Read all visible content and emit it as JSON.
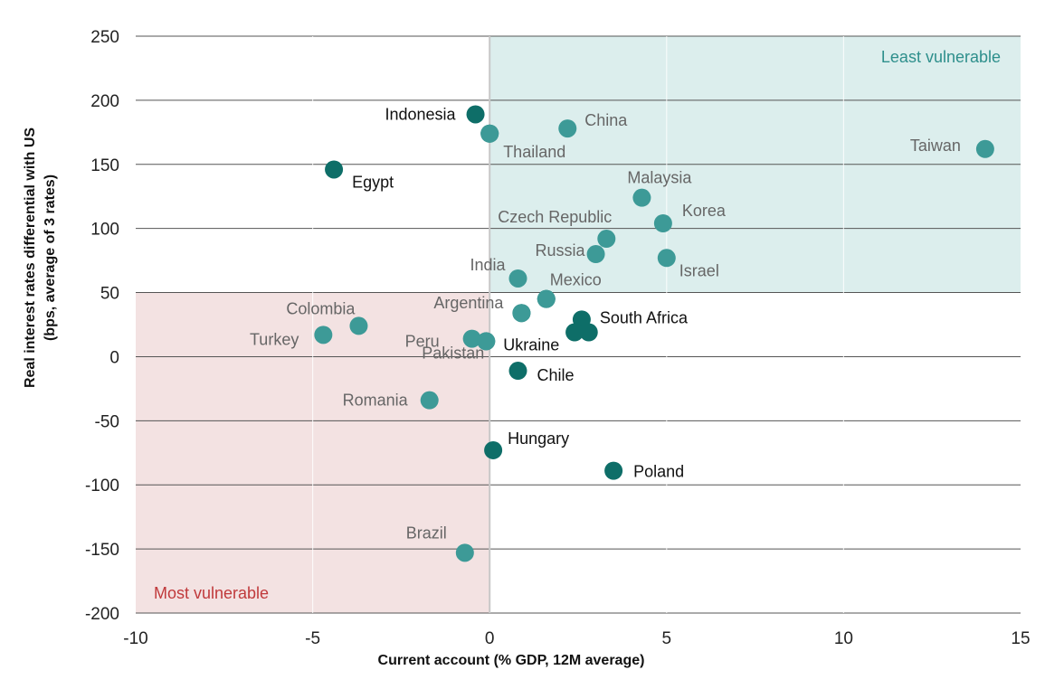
{
  "chart_data": {
    "type": "scatter",
    "xlabel": "Current account (% GDP, 12M average)",
    "ylabel_line1": "Real interest rates differential with US",
    "ylabel_line2": "(bps, average of 3 rates)",
    "xlim": [
      -10,
      15
    ],
    "ylim": [
      -200,
      250
    ],
    "x_ticks": [
      -10,
      -5,
      0,
      5,
      10,
      15
    ],
    "y_ticks": [
      250,
      200,
      150,
      100,
      50,
      0,
      -50,
      -100,
      -150,
      -200
    ],
    "grid": "horizontal",
    "zones": [
      {
        "name": "Least vulnerable",
        "x_range": [
          0,
          15
        ],
        "y_range": [
          50,
          250
        ],
        "color": "#dceeed",
        "label_color": "#2e8f8c"
      },
      {
        "name": "Most vulnerable",
        "x_range": [
          -10,
          0
        ],
        "y_range": [
          -200,
          50
        ],
        "color": "#f3e2e2",
        "label_color": "#c0393b"
      }
    ],
    "series": [
      {
        "color": "#0e6e68",
        "label_color": "#111111",
        "points": [
          {
            "label": "Indonesia",
            "x": -0.4,
            "y": 189
          },
          {
            "label": "Egypt",
            "x": -4.4,
            "y": 146
          },
          {
            "label": "South Africa",
            "x": 2.6,
            "y": 29
          },
          {
            "label": "Ukraine",
            "x": -0.1,
            "y": 12
          },
          {
            "label": "Chile",
            "x": 0.8,
            "y": -11
          },
          {
            "label": "Hungary",
            "x": 0.1,
            "y": -73
          },
          {
            "label": "Poland",
            "x": 3.5,
            "y": -89
          },
          {
            "label": "",
            "x": 0.0,
            "y": 174
          },
          {
            "label": "",
            "x": 0.9,
            "y": 34
          },
          {
            "label": "",
            "x": 1.6,
            "y": 45
          },
          {
            "label": "",
            "x": 2.4,
            "y": 19
          },
          {
            "label": "",
            "x": 2.8,
            "y": 19
          }
        ]
      },
      {
        "color": "#3d9a97",
        "label_color": "#666666",
        "points": [
          {
            "label": "China",
            "x": 2.2,
            "y": 178
          },
          {
            "label": "Thailand",
            "x": 0.0,
            "y": 174
          },
          {
            "label": "Taiwan",
            "x": 14.0,
            "y": 162
          },
          {
            "label": "Malaysia",
            "x": 4.3,
            "y": 124
          },
          {
            "label": "Korea",
            "x": 4.9,
            "y": 104
          },
          {
            "label": "Czech Republic",
            "x": 3.3,
            "y": 92
          },
          {
            "label": "Russia",
            "x": 3.0,
            "y": 80
          },
          {
            "label": "Israel",
            "x": 5.0,
            "y": 77
          },
          {
            "label": "India",
            "x": 0.8,
            "y": 61
          },
          {
            "label": "Mexico",
            "x": 1.6,
            "y": 45
          },
          {
            "label": "Argentina",
            "x": 0.9,
            "y": 34
          },
          {
            "label": "Colombia",
            "x": -3.7,
            "y": 24
          },
          {
            "label": "Turkey",
            "x": -4.7,
            "y": 17
          },
          {
            "label": "Peru",
            "x": -0.5,
            "y": 14
          },
          {
            "label": "Pakistan",
            "x": -0.1,
            "y": 12
          },
          {
            "label": "Romania",
            "x": -1.7,
            "y": -34
          },
          {
            "label": "Brazil",
            "x": -0.7,
            "y": -153
          }
        ]
      }
    ]
  }
}
